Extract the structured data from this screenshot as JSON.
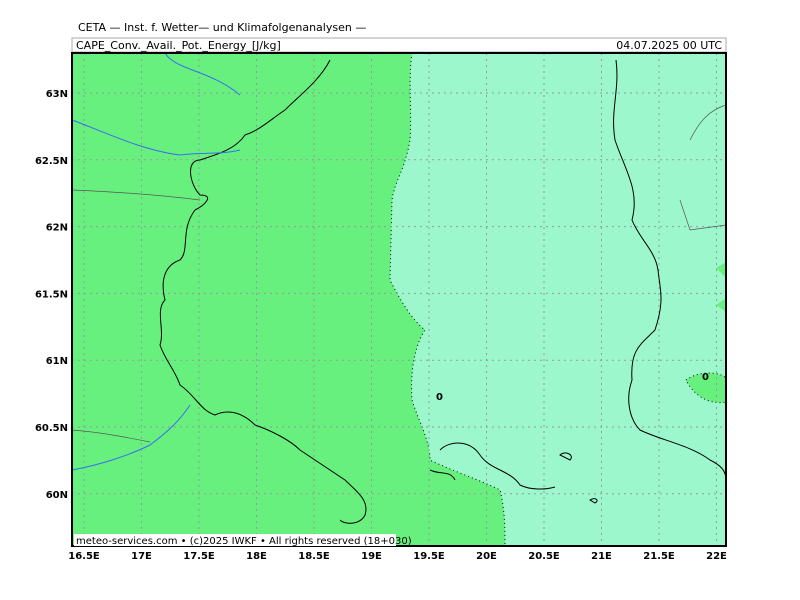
{
  "header": {
    "title": "CETA — Inst. f. Wetter— und Klimafolgenanalysen —",
    "subtitle": "CAPE_Conv._Avail._Pot._Energy_[J/kg]",
    "date": "04.07.2025 00 UTC"
  },
  "axes": {
    "x_labels": [
      "16.5E",
      "17E",
      "17.5E",
      "18E",
      "18.5E",
      "19E",
      "19.5E",
      "20E",
      "20.5E",
      "21E",
      "21.5E",
      "22E"
    ],
    "y_labels": [
      "63N",
      "62.5N",
      "62N",
      "61.5N",
      "61N",
      "60.5N",
      "60N"
    ]
  },
  "contour_labels": [
    "0",
    "0"
  ],
  "footer": "meteo-services.com • (c)2025 IWKF • All rights reserved (18+030)"
}
